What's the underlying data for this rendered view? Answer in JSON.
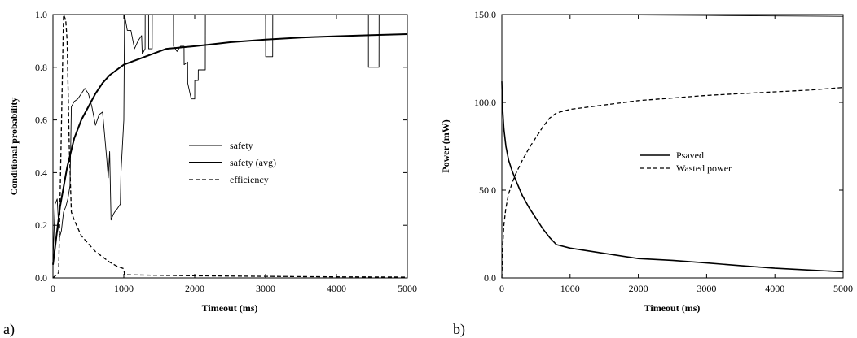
{
  "chart_data": [
    {
      "panel_label": "a)",
      "type": "line",
      "title": "",
      "xlabel": "Timeout (ms)",
      "ylabel": "Conditional probability",
      "xlim": [
        0,
        5000
      ],
      "ylim": [
        0,
        1.0
      ],
      "xticks": [
        "0",
        "1000",
        "2000",
        "3000",
        "4000",
        "5000"
      ],
      "yticks": [
        "0.0",
        "0.2",
        "0.4",
        "0.6",
        "0.8",
        "1.0"
      ],
      "grid": false,
      "legend_position": "center-right",
      "series": [
        {
          "name": "safety",
          "style": "thin-solid",
          "x": [
            0,
            30,
            60,
            90,
            120,
            150,
            180,
            210,
            240,
            250,
            260,
            300,
            350,
            400,
            450,
            500,
            550,
            600,
            650,
            700,
            760,
            780,
            800,
            820,
            850,
            870,
            900,
            950,
            960,
            1000,
            1010,
            1050,
            1100,
            1150,
            1200,
            1250,
            1260,
            1300,
            1301,
            1350,
            1351,
            1400,
            1401,
            1450,
            1500,
            1600,
            1700,
            1701,
            1750,
            1800,
            1850,
            1851,
            1900,
            1901,
            1950,
            2000,
            2001,
            2050,
            2051,
            2100,
            2150,
            2151,
            2200,
            2600,
            3000,
            3001,
            3100,
            3101,
            3150,
            3151,
            3500,
            4000,
            4400,
            4450,
            4451,
            4600,
            4601,
            4700,
            5000
          ],
          "y": [
            0.07,
            0.28,
            0.3,
            0.15,
            0.18,
            0.25,
            0.27,
            0.3,
            0.35,
            0.5,
            0.65,
            0.67,
            0.68,
            0.7,
            0.72,
            0.7,
            0.65,
            0.58,
            0.62,
            0.63,
            0.45,
            0.38,
            0.48,
            0.22,
            0.24,
            0.25,
            0.26,
            0.28,
            0.4,
            0.6,
            1.0,
            0.94,
            0.94,
            0.87,
            0.9,
            0.92,
            0.85,
            0.87,
            1.0,
            1.0,
            0.87,
            0.87,
            1.0,
            1.0,
            1.0,
            1.0,
            1.0,
            0.88,
            0.86,
            0.88,
            0.88,
            0.81,
            0.82,
            0.74,
            0.68,
            0.68,
            0.75,
            0.75,
            0.79,
            0.79,
            0.79,
            1.0,
            1.0,
            1.0,
            1.0,
            0.84,
            0.84,
            1.0,
            1.0,
            1.0,
            1.0,
            1.0,
            1.0,
            1.0,
            0.8,
            0.8,
            1.0,
            1.0,
            1.0
          ]
        },
        {
          "name": "safety (avg)",
          "style": "thick-solid",
          "x": [
            0,
            100,
            200,
            300,
            400,
            500,
            600,
            700,
            800,
            900,
            1000,
            1200,
            1400,
            1600,
            1800,
            2000,
            2500,
            3000,
            3500,
            4000,
            4500,
            5000
          ],
          "y": [
            0.05,
            0.27,
            0.42,
            0.53,
            0.6,
            0.65,
            0.7,
            0.74,
            0.77,
            0.79,
            0.81,
            0.83,
            0.85,
            0.87,
            0.875,
            0.88,
            0.895,
            0.905,
            0.913,
            0.918,
            0.922,
            0.926
          ]
        },
        {
          "name": "efficiency",
          "style": "dashed",
          "x": [
            0,
            80,
            150,
            180,
            200,
            230,
            260,
            300,
            400,
            500,
            600,
            700,
            800,
            900,
            950,
            1000,
            1010,
            1500,
            2000,
            3000,
            4000,
            5000
          ],
          "y": [
            0.0,
            0.02,
            1.0,
            0.98,
            0.9,
            0.5,
            0.25,
            0.22,
            0.16,
            0.13,
            0.1,
            0.08,
            0.06,
            0.045,
            0.04,
            0.035,
            0.012,
            0.01,
            0.008,
            0.006,
            0.004,
            0.003
          ]
        }
      ]
    },
    {
      "panel_label": "b)",
      "type": "line",
      "title": "",
      "xlabel": "Timeout (ms)",
      "ylabel": "Power (mW)",
      "xlim": [
        0,
        5000
      ],
      "ylim": [
        0,
        150
      ],
      "xticks": [
        "0",
        "1000",
        "2000",
        "3000",
        "4000",
        "5000"
      ],
      "yticks": [
        "0.0",
        "50.0",
        "100.0",
        "150.0"
      ],
      "grid": false,
      "legend_position": "center-right",
      "series": [
        {
          "name": "Psaved",
          "style": "solid",
          "x": [
            0,
            10,
            30,
            60,
            100,
            150,
            200,
            300,
            400,
            500,
            600,
            700,
            800,
            1000,
            1500,
            2000,
            2500,
            3000,
            3500,
            4000,
            4500,
            5000
          ],
          "y": [
            112,
            98,
            85,
            75,
            67,
            61,
            56,
            47,
            40,
            34,
            28,
            23,
            19,
            17,
            14,
            11,
            10,
            8.5,
            7,
            5.5,
            4.5,
            3.5
          ]
        },
        {
          "name": "Wasted power",
          "style": "dashed",
          "x": [
            0,
            10,
            30,
            60,
            100,
            150,
            200,
            300,
            400,
            500,
            600,
            700,
            800,
            1000,
            1500,
            2000,
            2500,
            3000,
            3500,
            4000,
            4500,
            5000
          ],
          "y": [
            0,
            15,
            30,
            40,
            48,
            54,
            59,
            67,
            74,
            80,
            86,
            91,
            94,
            96,
            98.5,
            101,
            102.5,
            104,
            105,
            106,
            107,
            108.5
          ]
        },
        {
          "name": "",
          "style": "thin-solid",
          "x": [
            0,
            1000,
            2000,
            3000,
            4000,
            5000
          ],
          "y": [
            150,
            149.9,
            149.7,
            149.5,
            149.2,
            149
          ]
        }
      ]
    }
  ]
}
